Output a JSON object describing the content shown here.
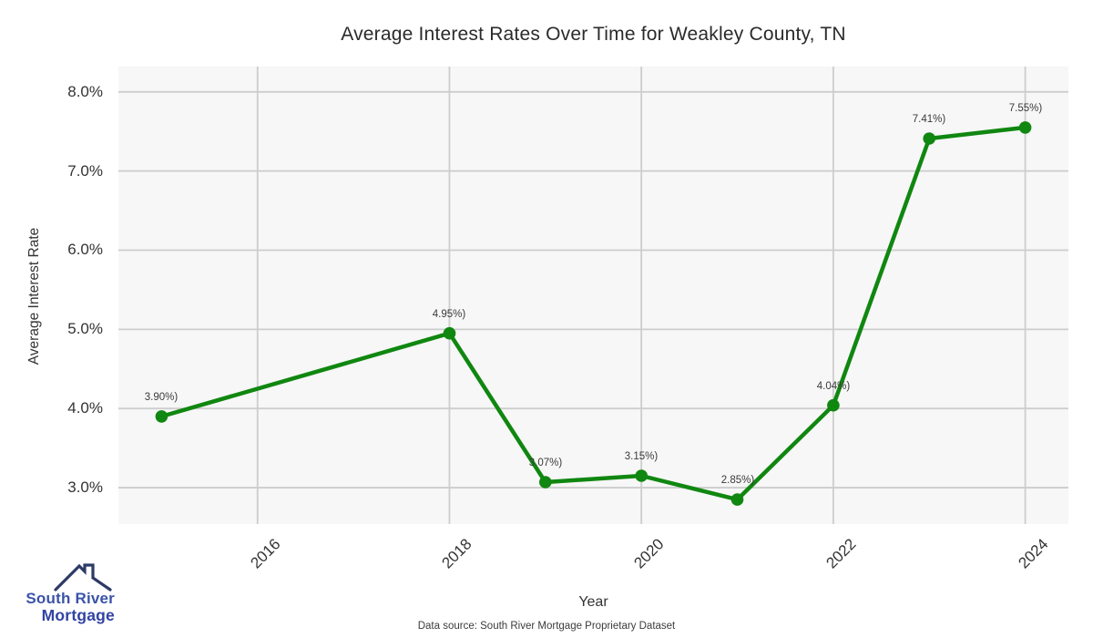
{
  "chart": {
    "title": "Average Interest Rates Over Time for Weakley County, TN",
    "xlabel": "Year",
    "ylabel": "Average Interest Rate",
    "source_note": "Data source: South River Mortgage Proprietary Dataset"
  },
  "chart_data": {
    "type": "line",
    "series_name": "Average Interest Rate",
    "x": [
      2015,
      2018,
      2019,
      2020,
      2021,
      2022,
      2023,
      2024
    ],
    "values": [
      3.9,
      4.95,
      3.07,
      3.15,
      2.85,
      4.04,
      7.41,
      7.55
    ],
    "point_labels": [
      "3.90%)",
      "4.95%)",
      "3.07%)",
      "3.15%)",
      "2.85%)",
      "4.04%)",
      "7.41%)",
      "7.55%)"
    ],
    "x_ticks": [
      2016,
      2018,
      2020,
      2022,
      2024
    ],
    "x_tick_labels": [
      "2016",
      "2018",
      "2020",
      "2022",
      "2024"
    ],
    "y_ticks": [
      3,
      4,
      5,
      6,
      7,
      8
    ],
    "y_tick_labels": [
      "3.0%",
      "4.0%",
      "5.0%",
      "6.0%",
      "7.0%",
      "8.0%"
    ],
    "xlim": [
      2014.55,
      2024.45
    ],
    "ylim": [
      2.54,
      8.32
    ],
    "grid": true,
    "legend": "none",
    "line_color": "#108710",
    "marker_color": "#108710",
    "plot_bg_color": "#f7f7f7",
    "grid_color": "#cdcdcd"
  },
  "logo": {
    "line1": "South River",
    "line2": "Mortgage",
    "text_color1": "#3a53a8",
    "text_color2": "#3143a3",
    "roof_color": "#2d3a66"
  }
}
